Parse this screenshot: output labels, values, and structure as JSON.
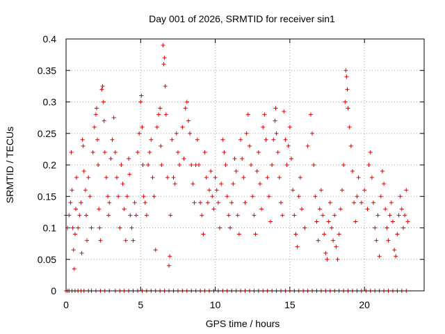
{
  "chart_data": {
    "type": "scatter",
    "title": "Day 001 of 2026, SRMTID for receiver sin1",
    "xlabel": "GPS time / hours",
    "ylabel": "SRMTID / TECUs",
    "xlim": [
      0,
      24
    ],
    "ylim": [
      0,
      0.4
    ],
    "xticks": [
      0,
      5,
      10,
      15,
      20
    ],
    "xtick_labels": [
      "0",
      "5",
      "10",
      "15",
      "20"
    ],
    "yticks": [
      0,
      0.05,
      0.1,
      0.15,
      0.2,
      0.25,
      0.3,
      0.35,
      0.4
    ],
    "ytick_labels": [
      "0",
      "0.05",
      "0.1",
      "0.15",
      "0.2",
      "0.25",
      "0.3",
      "0.35",
      "0.4"
    ],
    "grid": true,
    "marker": "+",
    "color": "#e00000",
    "series": [
      {
        "name": "sin1",
        "points": [
          [
            0.0,
            0.12
          ],
          [
            0.1,
            0.1
          ],
          [
            0.2,
            0.12
          ],
          [
            0.3,
            0.14
          ],
          [
            0.35,
            0.22
          ],
          [
            0.4,
            0.16
          ],
          [
            0.45,
            0.1
          ],
          [
            0.5,
            0.065
          ],
          [
            0.55,
            0.035
          ],
          [
            0.6,
            0.09
          ],
          [
            0.65,
            0.13
          ],
          [
            0.7,
            0.18
          ],
          [
            0.8,
            0.1
          ],
          [
            0.9,
            0.12
          ],
          [
            1.0,
            0.14
          ],
          [
            1.05,
            0.06
          ],
          [
            1.1,
            0.24
          ],
          [
            1.15,
            0.23
          ],
          [
            1.2,
            0.19
          ],
          [
            1.3,
            0.16
          ],
          [
            1.35,
            0.12
          ],
          [
            1.4,
            0.08
          ],
          [
            1.5,
            0.18
          ],
          [
            1.6,
            0.15
          ],
          [
            1.7,
            0.1
          ],
          [
            1.8,
            0.22
          ],
          [
            1.9,
            0.26
          ],
          [
            2.0,
            0.28
          ],
          [
            2.05,
            0.29
          ],
          [
            2.1,
            0.24
          ],
          [
            2.15,
            0.2
          ],
          [
            2.2,
            0.13
          ],
          [
            2.25,
            0.1
          ],
          [
            2.3,
            0.08
          ],
          [
            2.4,
            0.32
          ],
          [
            2.45,
            0.325
          ],
          [
            2.5,
            0.3
          ],
          [
            2.55,
            0.27
          ],
          [
            2.6,
            0.22
          ],
          [
            2.7,
            0.18
          ],
          [
            2.8,
            0.15
          ],
          [
            2.85,
            0.12
          ],
          [
            2.9,
            0.14
          ],
          [
            3.0,
            0.21
          ],
          [
            3.1,
            0.24
          ],
          [
            3.2,
            0.275
          ],
          [
            3.3,
            0.22
          ],
          [
            3.4,
            0.18
          ],
          [
            3.5,
            0.15
          ],
          [
            3.6,
            0.1
          ],
          [
            3.7,
            0.2
          ],
          [
            3.8,
            0.17
          ],
          [
            3.9,
            0.13
          ],
          [
            4.0,
            0.08
          ],
          [
            4.1,
            0.15
          ],
          [
            4.2,
            0.21
          ],
          [
            4.25,
            0.185
          ],
          [
            4.3,
            0.12
          ],
          [
            4.4,
            0.1
          ],
          [
            4.5,
            0.08
          ],
          [
            4.6,
            0.14
          ],
          [
            4.7,
            0.12
          ],
          [
            4.8,
            0.22
          ],
          [
            4.9,
            0.25
          ],
          [
            5.0,
            0.3
          ],
          [
            5.05,
            0.31
          ],
          [
            5.1,
            0.26
          ],
          [
            5.15,
            0.2
          ],
          [
            5.2,
            0.15
          ],
          [
            5.3,
            0.14
          ],
          [
            5.4,
            0.12
          ],
          [
            5.5,
            0.2
          ],
          [
            5.6,
            0.22
          ],
          [
            5.7,
            0.24
          ],
          [
            5.8,
            0.18
          ],
          [
            5.9,
            0.15
          ],
          [
            6.0,
            0.065
          ],
          [
            6.1,
            0.26
          ],
          [
            6.2,
            0.28
          ],
          [
            6.3,
            0.29
          ],
          [
            6.35,
            0.23
          ],
          [
            6.4,
            0.2
          ],
          [
            6.5,
            0.39
          ],
          [
            6.55,
            0.36
          ],
          [
            6.6,
            0.37
          ],
          [
            6.65,
            0.325
          ],
          [
            6.7,
            0.28
          ],
          [
            6.8,
            0.18
          ],
          [
            6.9,
            0.04
          ],
          [
            6.95,
            0.055
          ],
          [
            7.0,
            0.12
          ],
          [
            7.1,
            0.24
          ],
          [
            7.2,
            0.18
          ],
          [
            7.3,
            0.17
          ],
          [
            7.4,
            0.25
          ],
          [
            7.5,
            0.22
          ],
          [
            7.6,
            0.2
          ],
          [
            7.8,
            0.26
          ],
          [
            7.9,
            0.21
          ],
          [
            8.0,
            0.29
          ],
          [
            8.1,
            0.3
          ],
          [
            8.2,
            0.27
          ],
          [
            8.3,
            0.25
          ],
          [
            8.4,
            0.2
          ],
          [
            8.5,
            0.17
          ],
          [
            8.6,
            0.14
          ],
          [
            8.7,
            0.2
          ],
          [
            8.8,
            0.24
          ],
          [
            8.9,
            0.2
          ],
          [
            9.0,
            0.14
          ],
          [
            9.1,
            0.12
          ],
          [
            9.2,
            0.09
          ],
          [
            9.3,
            0.22
          ],
          [
            9.4,
            0.18
          ],
          [
            9.5,
            0.14
          ],
          [
            9.6,
            0.16
          ],
          [
            9.7,
            0.19
          ],
          [
            9.8,
            0.15
          ],
          [
            9.9,
            0.13
          ],
          [
            10.0,
            0.18
          ],
          [
            10.1,
            0.16
          ],
          [
            10.2,
            0.14
          ],
          [
            10.3,
            0.1
          ],
          [
            10.4,
            0.17
          ],
          [
            10.5,
            0.24
          ],
          [
            10.6,
            0.22
          ],
          [
            10.7,
            0.2
          ],
          [
            10.8,
            0.15
          ],
          [
            10.9,
            0.12
          ],
          [
            11.0,
            0.1
          ],
          [
            11.1,
            0.14
          ],
          [
            11.2,
            0.17
          ],
          [
            11.3,
            0.21
          ],
          [
            11.4,
            0.19
          ],
          [
            11.5,
            0.12
          ],
          [
            11.6,
            0.09
          ],
          [
            11.7,
            0.24
          ],
          [
            11.8,
            0.21
          ],
          [
            11.9,
            0.18
          ],
          [
            12.0,
            0.14
          ],
          [
            12.1,
            0.25
          ],
          [
            12.2,
            0.28
          ],
          [
            12.3,
            0.23
          ],
          [
            12.4,
            0.2
          ],
          [
            12.5,
            0.15
          ],
          [
            12.6,
            0.12
          ],
          [
            12.7,
            0.09
          ],
          [
            12.8,
            0.19
          ],
          [
            12.9,
            0.22
          ],
          [
            13.0,
            0.17
          ],
          [
            13.1,
            0.13
          ],
          [
            13.2,
            0.26
          ],
          [
            13.3,
            0.28
          ],
          [
            13.4,
            0.24
          ],
          [
            13.5,
            0.18
          ],
          [
            13.6,
            0.15
          ],
          [
            13.7,
            0.11
          ],
          [
            13.8,
            0.2
          ],
          [
            13.9,
            0.24
          ],
          [
            14.0,
            0.27
          ],
          [
            14.05,
            0.29
          ],
          [
            14.1,
            0.25
          ],
          [
            14.2,
            0.22
          ],
          [
            14.3,
            0.18
          ],
          [
            14.4,
            0.14
          ],
          [
            14.5,
            0.12
          ],
          [
            14.6,
            0.285
          ],
          [
            14.7,
            0.24
          ],
          [
            14.8,
            0.2
          ],
          [
            14.9,
            0.23
          ],
          [
            15.0,
            0.26
          ],
          [
            15.1,
            0.21
          ],
          [
            15.2,
            0.16
          ],
          [
            15.3,
            0.12
          ],
          [
            15.4,
            0.09
          ],
          [
            15.5,
            0.07
          ],
          [
            15.6,
            0.15
          ],
          [
            15.7,
            0.18
          ],
          [
            15.8,
            0.13
          ],
          [
            16.0,
            0.1
          ],
          [
            16.2,
            0.23
          ],
          [
            16.4,
            0.28
          ],
          [
            16.5,
            0.25
          ],
          [
            16.6,
            0.2
          ],
          [
            16.7,
            0.15
          ],
          [
            16.8,
            0.11
          ],
          [
            16.9,
            0.08
          ],
          [
            17.0,
            0.13
          ],
          [
            17.1,
            0.16
          ],
          [
            17.2,
            0.12
          ],
          [
            17.3,
            0.09
          ],
          [
            17.4,
            0.06
          ],
          [
            17.5,
            0.05
          ],
          [
            17.6,
            0.11
          ],
          [
            17.7,
            0.14
          ],
          [
            17.8,
            0.1
          ],
          [
            17.9,
            0.08
          ],
          [
            18.0,
            0.12
          ],
          [
            18.1,
            0.07
          ],
          [
            18.2,
            0.05
          ],
          [
            18.3,
            0.09
          ],
          [
            18.4,
            0.13
          ],
          [
            18.5,
            0.16
          ],
          [
            18.6,
            0.2
          ],
          [
            18.7,
            0.3
          ],
          [
            18.75,
            0.35
          ],
          [
            18.8,
            0.34
          ],
          [
            18.85,
            0.32
          ],
          [
            18.9,
            0.29
          ],
          [
            19.0,
            0.26
          ],
          [
            19.1,
            0.23
          ],
          [
            19.2,
            0.19
          ],
          [
            19.3,
            0.14
          ],
          [
            19.4,
            0.11
          ],
          [
            19.5,
            0.15
          ],
          [
            19.6,
            0.18
          ],
          [
            19.8,
            0.14
          ],
          [
            20.0,
            0.16
          ],
          [
            20.2,
            0.13
          ],
          [
            20.3,
            0.2
          ],
          [
            20.4,
            0.22
          ],
          [
            20.5,
            0.18
          ],
          [
            20.6,
            0.14
          ],
          [
            20.7,
            0.1
          ],
          [
            20.8,
            0.08
          ],
          [
            20.9,
            0.12
          ],
          [
            21.0,
            0.055
          ],
          [
            21.1,
            0.15
          ],
          [
            21.2,
            0.19
          ],
          [
            21.3,
            0.17
          ],
          [
            21.4,
            0.13
          ],
          [
            21.5,
            0.1
          ],
          [
            21.6,
            0.08
          ],
          [
            21.7,
            0.12
          ],
          [
            21.8,
            0.14
          ],
          [
            21.9,
            0.11
          ],
          [
            22.0,
            0.065
          ],
          [
            22.1,
            0.055
          ],
          [
            22.2,
            0.09
          ],
          [
            22.3,
            0.12
          ],
          [
            22.4,
            0.15
          ],
          [
            22.5,
            0.13
          ],
          [
            22.6,
            0.1
          ],
          [
            22.7,
            0.12
          ],
          [
            22.8,
            0.16
          ],
          [
            22.9,
            0.11
          ],
          [
            0.0,
            0
          ],
          [
            0.1,
            0
          ],
          [
            0.2,
            0
          ],
          [
            0.4,
            0
          ],
          [
            0.6,
            0
          ],
          [
            0.8,
            0
          ],
          [
            1.0,
            0
          ],
          [
            1.2,
            0
          ],
          [
            1.5,
            0
          ],
          [
            1.7,
            0
          ],
          [
            2.0,
            0
          ],
          [
            2.3,
            0
          ],
          [
            2.6,
            0
          ],
          [
            2.9,
            0
          ],
          [
            3.3,
            0
          ],
          [
            3.6,
            0
          ],
          [
            3.9,
            0
          ],
          [
            4.2,
            0
          ],
          [
            4.5,
            0
          ],
          [
            4.8,
            0
          ],
          [
            5.1,
            0
          ],
          [
            5.4,
            0
          ],
          [
            5.7,
            0
          ],
          [
            6.0,
            0
          ],
          [
            6.3,
            0
          ],
          [
            6.6,
            0
          ],
          [
            6.9,
            0
          ],
          [
            7.2,
            0
          ],
          [
            7.5,
            0
          ],
          [
            7.8,
            0
          ],
          [
            8.1,
            0
          ],
          [
            8.4,
            0
          ],
          [
            8.7,
            0
          ],
          [
            9.0,
            0
          ],
          [
            9.3,
            0
          ],
          [
            9.6,
            0
          ],
          [
            9.9,
            0
          ],
          [
            10.2,
            0
          ],
          [
            10.5,
            0
          ],
          [
            10.8,
            0
          ],
          [
            11.1,
            0
          ],
          [
            11.4,
            0
          ],
          [
            11.7,
            0
          ],
          [
            12.0,
            0
          ],
          [
            12.3,
            0
          ],
          [
            12.6,
            0
          ],
          [
            12.9,
            0
          ],
          [
            13.2,
            0
          ],
          [
            13.5,
            0
          ],
          [
            13.8,
            0
          ],
          [
            14.1,
            0
          ],
          [
            14.4,
            0
          ],
          [
            14.7,
            0
          ],
          [
            15.0,
            0
          ],
          [
            15.3,
            0
          ],
          [
            15.6,
            0
          ],
          [
            15.9,
            0
          ],
          [
            16.2,
            0
          ],
          [
            16.5,
            0
          ],
          [
            16.8,
            0
          ],
          [
            17.1,
            0
          ],
          [
            17.4,
            0
          ],
          [
            17.7,
            0
          ],
          [
            18.0,
            0
          ],
          [
            18.3,
            0
          ],
          [
            18.6,
            0
          ],
          [
            18.9,
            0
          ],
          [
            19.2,
            0
          ],
          [
            19.5,
            0
          ],
          [
            19.8,
            0
          ],
          [
            20.1,
            0
          ],
          [
            20.4,
            0
          ],
          [
            20.7,
            0
          ],
          [
            21.0,
            0
          ],
          [
            21.3,
            0
          ],
          [
            21.6,
            0
          ],
          [
            21.9,
            0
          ],
          [
            22.2,
            0
          ],
          [
            22.5,
            0
          ],
          [
            22.8,
            0
          ]
        ]
      }
    ]
  }
}
